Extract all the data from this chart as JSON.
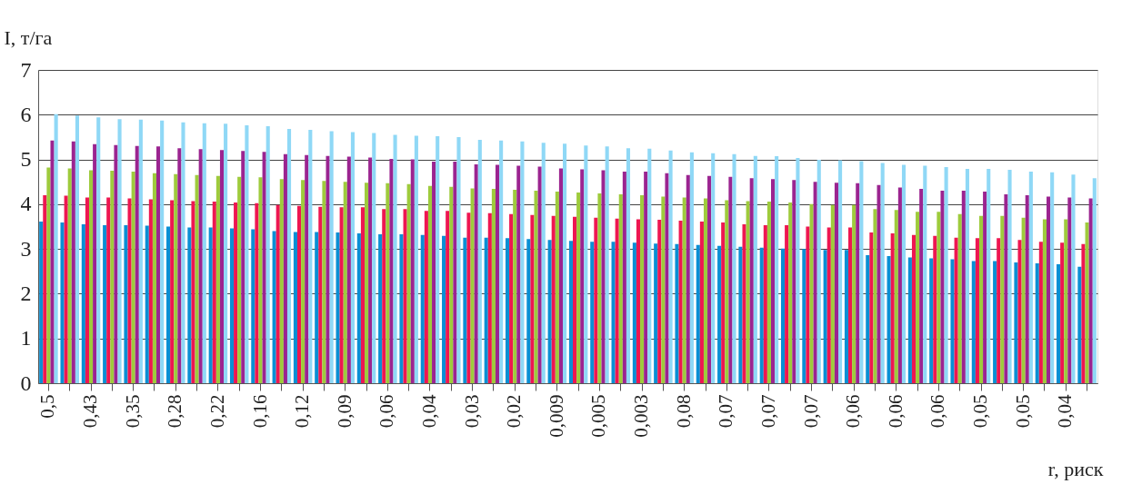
{
  "chart_data": {
    "type": "bar",
    "xlabel": "r, риск",
    "ylabel": "I, т/га",
    "categories": [
      "0,5",
      null,
      "0,43",
      null,
      "0,35",
      null,
      "0,28",
      null,
      "0,22",
      null,
      "0,16",
      null,
      "0,12",
      null,
      "0,09",
      null,
      "0,06",
      null,
      "0,04",
      null,
      "0,03",
      null,
      "0,02",
      null,
      "0,009",
      null,
      "0,005",
      null,
      "0,003",
      null,
      "0,08",
      null,
      "0,07",
      null,
      "0,07",
      null,
      "0,07",
      null,
      "0,06",
      null,
      "0,06",
      null,
      "0,06",
      null,
      "0,05",
      null,
      "0,05",
      null,
      "0,04",
      null
    ],
    "series": [
      {
        "color": "#0a8fd4",
        "values": [
          3.61,
          3.59,
          3.55,
          3.53,
          3.53,
          3.52,
          3.5,
          3.48,
          3.48,
          3.46,
          3.44,
          3.4,
          3.38,
          3.38,
          3.37,
          3.35,
          3.33,
          3.33,
          3.31,
          3.29,
          3.25,
          3.25,
          3.24,
          3.22,
          3.2,
          3.18,
          3.16,
          3.16,
          3.14,
          3.12,
          3.11,
          3.09,
          3.07,
          3.05,
          3.03,
          3.01,
          3.0,
          2.98,
          2.98,
          2.86,
          2.84,
          2.81,
          2.79,
          2.77,
          2.73,
          2.73,
          2.7,
          2.68,
          2.66,
          2.6
        ]
      },
      {
        "color": "#ee1651",
        "values": [
          4.2,
          4.19,
          4.15,
          4.15,
          4.13,
          4.11,
          4.09,
          4.07,
          4.06,
          4.04,
          4.02,
          3.98,
          3.96,
          3.94,
          3.93,
          3.93,
          3.89,
          3.89,
          3.85,
          3.85,
          3.81,
          3.8,
          3.78,
          3.76,
          3.74,
          3.72,
          3.7,
          3.68,
          3.66,
          3.65,
          3.63,
          3.61,
          3.59,
          3.55,
          3.53,
          3.53,
          3.5,
          3.48,
          3.48,
          3.37,
          3.35,
          3.31,
          3.29,
          3.25,
          3.24,
          3.24,
          3.2,
          3.16,
          3.14,
          3.11
        ]
      },
      {
        "color": "#9ecb3c",
        "values": [
          4.82,
          4.8,
          4.76,
          4.75,
          4.73,
          4.69,
          4.67,
          4.65,
          4.63,
          4.61,
          4.6,
          4.56,
          4.54,
          4.52,
          4.5,
          4.48,
          4.47,
          4.45,
          4.41,
          4.39,
          4.35,
          4.34,
          4.32,
          4.3,
          4.28,
          4.26,
          4.24,
          4.22,
          4.2,
          4.17,
          4.15,
          4.13,
          4.09,
          4.07,
          4.06,
          4.04,
          4.0,
          3.98,
          3.98,
          3.89,
          3.87,
          3.83,
          3.83,
          3.78,
          3.74,
          3.74,
          3.7,
          3.66,
          3.66,
          3.59
        ]
      },
      {
        "color": "#9b2490",
        "values": [
          5.42,
          5.4,
          5.34,
          5.32,
          5.3,
          5.29,
          5.25,
          5.23,
          5.21,
          5.19,
          5.17,
          5.12,
          5.1,
          5.08,
          5.06,
          5.04,
          5.01,
          5.0,
          4.95,
          4.95,
          4.89,
          4.88,
          4.86,
          4.84,
          4.8,
          4.78,
          4.76,
          4.73,
          4.73,
          4.69,
          4.65,
          4.63,
          4.61,
          4.58,
          4.56,
          4.54,
          4.5,
          4.48,
          4.47,
          4.43,
          4.37,
          4.34,
          4.3,
          4.3,
          4.28,
          4.22,
          4.2,
          4.17,
          4.15,
          4.13
        ]
      },
      {
        "color": "#8fd8f6",
        "values": [
          6.01,
          5.98,
          5.94,
          5.9,
          5.89,
          5.87,
          5.83,
          5.81,
          5.8,
          5.76,
          5.74,
          5.68,
          5.66,
          5.63,
          5.61,
          5.59,
          5.55,
          5.53,
          5.52,
          5.5,
          5.44,
          5.42,
          5.4,
          5.37,
          5.35,
          5.31,
          5.29,
          5.25,
          5.24,
          5.2,
          5.16,
          5.14,
          5.12,
          5.08,
          5.07,
          5.03,
          4.99,
          4.98,
          4.96,
          4.92,
          4.88,
          4.86,
          4.83,
          4.79,
          4.79,
          4.77,
          4.73,
          4.71,
          4.66,
          4.58
        ]
      }
    ],
    "ylim": [
      0,
      7
    ],
    "yticks": [
      0,
      1,
      2,
      3,
      4,
      5,
      6,
      7
    ],
    "grid": "y"
  }
}
